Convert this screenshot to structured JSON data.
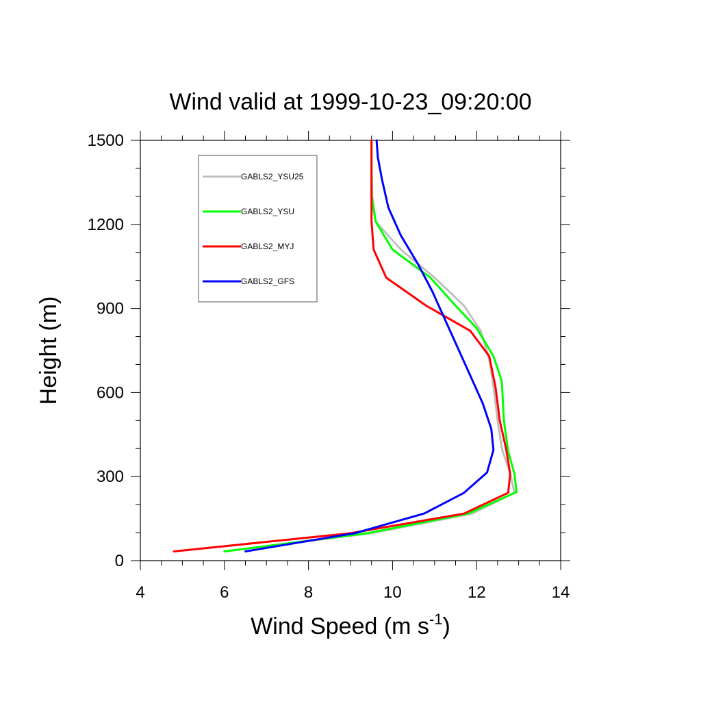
{
  "chart_data": {
    "type": "line",
    "title": "Wind valid at 1999-10-23_09:20:00",
    "xlabel": "Wind Speed (m s",
    "xlabel_sup": "-1",
    "xlabel_close": ")",
    "ylabel": "Height (m)",
    "xlim": [
      4,
      14
    ],
    "ylim": [
      0,
      1500
    ],
    "x_ticks": [
      "4",
      "6",
      "8",
      "10",
      "12",
      "14"
    ],
    "y_ticks": [
      "0",
      "300",
      "600",
      "900",
      "1200",
      "1500"
    ],
    "legend_position": "top-left",
    "grid": false,
    "series": [
      {
        "name": "GABLS2_YSU25",
        "color": "#c0c0c0",
        "points": [
          [
            6.0,
            33
          ],
          [
            9.5,
            98
          ],
          [
            11.9,
            168
          ],
          [
            12.9,
            242
          ],
          [
            12.8,
            310
          ],
          [
            12.6,
            400
          ],
          [
            12.5,
            500
          ],
          [
            12.4,
            620
          ],
          [
            12.3,
            720
          ],
          [
            12.1,
            820
          ],
          [
            11.7,
            910
          ],
          [
            11.0,
            1010
          ],
          [
            10.2,
            1110
          ],
          [
            9.6,
            1210
          ],
          [
            9.52,
            1300
          ],
          [
            9.5,
            1400
          ],
          [
            9.5,
            1500
          ]
        ]
      },
      {
        "name": "GABLS2_YSU",
        "color": "#00ff00",
        "points": [
          [
            6.0,
            33
          ],
          [
            9.4,
            98
          ],
          [
            11.8,
            168
          ],
          [
            12.95,
            245
          ],
          [
            12.9,
            310
          ],
          [
            12.75,
            390
          ],
          [
            12.65,
            500
          ],
          [
            12.6,
            640
          ],
          [
            12.4,
            730
          ],
          [
            12.0,
            830
          ],
          [
            11.5,
            910
          ],
          [
            10.9,
            1010
          ],
          [
            10.0,
            1110
          ],
          [
            9.6,
            1210
          ],
          [
            9.5,
            1300
          ],
          [
            9.5,
            1400
          ],
          [
            9.5,
            1500
          ]
        ]
      },
      {
        "name": "GABLS2_MYJ",
        "color": "#ff0000",
        "points": [
          [
            4.8,
            33
          ],
          [
            9.0,
            98
          ],
          [
            11.7,
            168
          ],
          [
            12.75,
            242
          ],
          [
            12.8,
            310
          ],
          [
            12.7,
            400
          ],
          [
            12.55,
            500
          ],
          [
            12.45,
            620
          ],
          [
            12.3,
            730
          ],
          [
            11.85,
            820
          ],
          [
            10.8,
            910
          ],
          [
            9.85,
            1010
          ],
          [
            9.55,
            1110
          ],
          [
            9.5,
            1210
          ],
          [
            9.5,
            1300
          ],
          [
            9.5,
            1400
          ],
          [
            9.5,
            1500
          ]
        ]
      },
      {
        "name": "GABLS2_GFS",
        "color": "#0000ff",
        "points": [
          [
            6.5,
            33
          ],
          [
            9.1,
            98
          ],
          [
            10.75,
            168
          ],
          [
            11.7,
            242
          ],
          [
            12.25,
            315
          ],
          [
            12.4,
            395
          ],
          [
            12.35,
            470
          ],
          [
            12.15,
            560
          ],
          [
            11.85,
            660
          ],
          [
            11.55,
            760
          ],
          [
            11.25,
            860
          ],
          [
            10.95,
            960
          ],
          [
            10.6,
            1060
          ],
          [
            10.2,
            1160
          ],
          [
            9.9,
            1260
          ],
          [
            9.75,
            1360
          ],
          [
            9.65,
            1440
          ],
          [
            9.62,
            1500
          ]
        ]
      }
    ]
  }
}
